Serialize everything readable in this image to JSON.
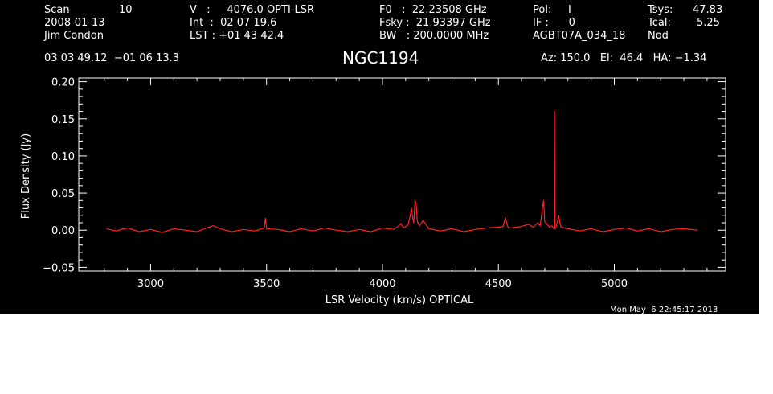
{
  "header": {
    "scan_label": "Scan",
    "scan_number": "10",
    "date": "2008-01-13",
    "observer": "Jim Condon",
    "velocity": "V   :     4076.0 OPTI-LSR",
    "integration": "Int  :  02 07 19.6",
    "lst": "LST : +01 43 42.4",
    "f0": "F0   :  22.23508 GHz",
    "fsky": "Fsky :  21.93397 GHz",
    "bw": "BW   : 200.0000 MHz",
    "pol": "Pol:     I",
    "if": "IF :      0",
    "project": "AGBT07A_034_18",
    "tsys_label": "Tsys:",
    "tsys_value": "47.83",
    "tcal_label": "Tcal:",
    "tcal_value": "5.25",
    "mode": "Nod",
    "coords": "03 03 49.12  −01 06 13.3",
    "source": "NGC1194",
    "pointing": "Az: 150.0   El:  46.4   HA: −1.34"
  },
  "footer": {
    "timestamp": "Mon May  6 22:45:17 2013"
  },
  "colors": {
    "background": "#000000",
    "foreground": "#ffffff",
    "spectrum": "#ff2020"
  },
  "chart_data": {
    "type": "line",
    "xlabel": "LSR Velocity (km/s) OPTICAL",
    "ylabel": "Flux Density (Jy)",
    "xlim": [
      2690,
      5480
    ],
    "ylim": [
      -0.055,
      0.205
    ],
    "x_ticks": [
      3000,
      3500,
      4000,
      4500,
      5000
    ],
    "y_ticks": [
      -0.05,
      0.0,
      0.05,
      0.1,
      0.15,
      0.2
    ],
    "y_tick_labels": [
      "−0.05",
      "0.00",
      "0.05",
      "0.10",
      "0.15",
      "0.20"
    ],
    "grid": false,
    "series": [
      {
        "x": [
          2810,
          2850,
          2900,
          2950,
          3000,
          3050,
          3100,
          3150,
          3200,
          3250,
          3270,
          3300,
          3350,
          3400,
          3450,
          3490,
          3495,
          3500,
          3550,
          3600,
          3650,
          3700,
          3750,
          3800,
          3850,
          3900,
          3950,
          4000,
          4050,
          4070,
          4080,
          4090,
          4100,
          4110,
          4120,
          4125,
          4130,
          4135,
          4140,
          4145,
          4150,
          4160,
          4175,
          4200,
          4250,
          4300,
          4350,
          4400,
          4450,
          4500,
          4520,
          4530,
          4540,
          4550,
          4600,
          4630,
          4650,
          4670,
          4680,
          4690,
          4695,
          4700,
          4710,
          4720,
          4730,
          4740,
          4742,
          4744,
          4750,
          4760,
          4765,
          4770,
          4800,
          4850,
          4900,
          4950,
          5000,
          5050,
          5100,
          5150,
          5200,
          5250,
          5300,
          5360
        ],
        "y": [
          0.002,
          -0.001,
          0.003,
          -0.002,
          0.001,
          -0.003,
          0.002,
          0.0,
          -0.002,
          0.004,
          0.006,
          0.002,
          -0.002,
          0.001,
          -0.001,
          0.003,
          0.016,
          0.002,
          0.001,
          -0.002,
          0.002,
          -0.001,
          0.003,
          0.0,
          -0.002,
          0.001,
          -0.002,
          0.003,
          0.001,
          0.006,
          0.009,
          0.003,
          0.005,
          0.007,
          0.02,
          0.03,
          0.018,
          0.01,
          0.04,
          0.036,
          0.012,
          0.006,
          0.013,
          0.002,
          -0.001,
          0.002,
          -0.002,
          0.001,
          0.003,
          0.004,
          0.005,
          0.017,
          0.005,
          0.003,
          0.005,
          0.008,
          0.004,
          0.01,
          0.006,
          0.03,
          0.04,
          0.012,
          0.008,
          0.004,
          0.006,
          0.002,
          0.16,
          0.002,
          0.006,
          0.02,
          0.01,
          0.004,
          0.002,
          -0.001,
          0.002,
          -0.002,
          0.001,
          0.003,
          -0.001,
          0.002,
          -0.002,
          0.001,
          0.002,
          0.0
        ]
      }
    ]
  }
}
